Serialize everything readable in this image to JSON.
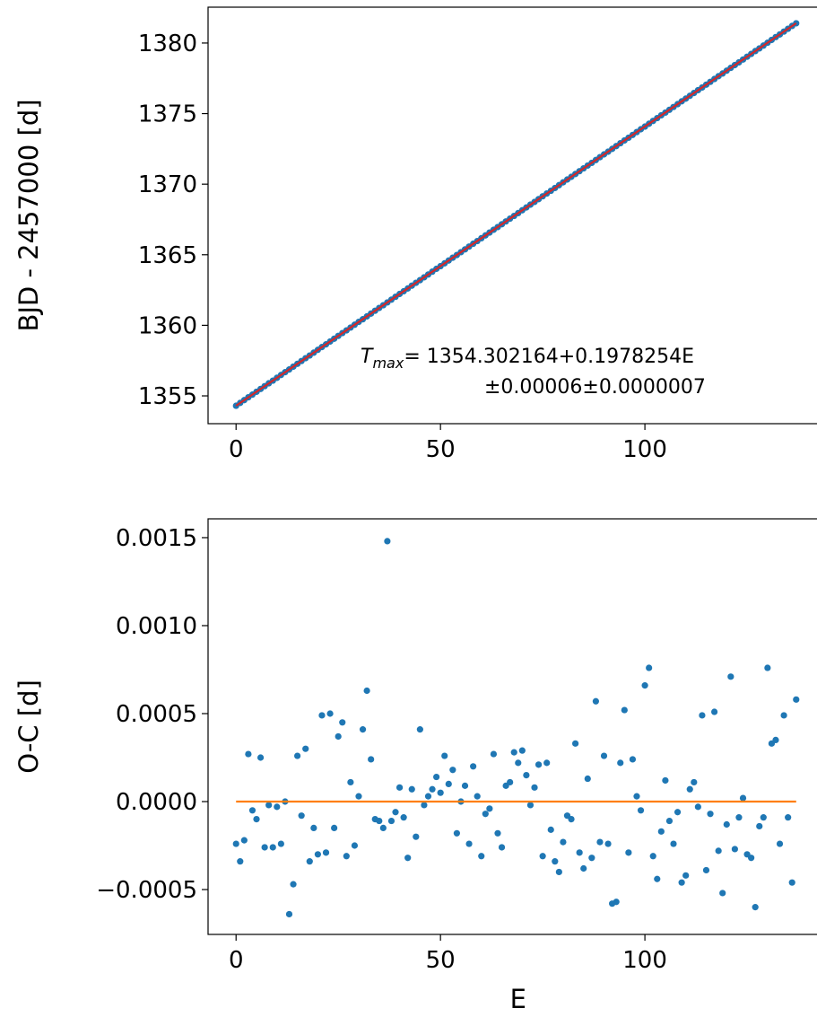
{
  "chart_data": [
    {
      "type": "scatter",
      "ylabel": "BJD - 2457000 [d]",
      "annotation": {
        "symbol": "T",
        "subscript": "max",
        "text": "= 1354.302164+0.1978254E",
        "error_text": "±0.00006±0.0000007"
      },
      "x": [
        0,
        1,
        2,
        3,
        4,
        5,
        6,
        7,
        8,
        9,
        10,
        11,
        12,
        13,
        14,
        15,
        16,
        17,
        18,
        19,
        20,
        21,
        22,
        23,
        24,
        25,
        26,
        27,
        28,
        29,
        30,
        31,
        32,
        33,
        34,
        35,
        36,
        37,
        38,
        39,
        40,
        41,
        42,
        43,
        44,
        45,
        46,
        47,
        48,
        49,
        50,
        51,
        52,
        53,
        54,
        55,
        56,
        57,
        58,
        59,
        60,
        61,
        62,
        63,
        64,
        65,
        66,
        67,
        68,
        69,
        70,
        71,
        72,
        73,
        74,
        75,
        76,
        77,
        78,
        79,
        80,
        81,
        82,
        83,
        84,
        85,
        86,
        87,
        88,
        89,
        90,
        91,
        92,
        93,
        94,
        95,
        96,
        97,
        98,
        99,
        100,
        101,
        102,
        103,
        104,
        105,
        106,
        107,
        108,
        109,
        110,
        111,
        112,
        113,
        114,
        115,
        116,
        117,
        118,
        119,
        120,
        121,
        122,
        123,
        124,
        125,
        126,
        127,
        128,
        129,
        130,
        131,
        132,
        133,
        134,
        135,
        136,
        137
      ],
      "values": [
        1354.3,
        1354.5,
        1354.7,
        1354.9,
        1355.09,
        1355.29,
        1355.49,
        1355.69,
        1355.89,
        1356.08,
        1356.28,
        1356.48,
        1356.68,
        1356.87,
        1357.07,
        1357.27,
        1357.47,
        1357.67,
        1357.86,
        1358.06,
        1358.26,
        1358.46,
        1358.65,
        1358.85,
        1359.05,
        1359.25,
        1359.45,
        1359.64,
        1359.84,
        1360.04,
        1360.24,
        1360.43,
        1360.63,
        1360.83,
        1361.03,
        1361.23,
        1361.42,
        1361.62,
        1361.82,
        1362.02,
        1362.22,
        1362.41,
        1362.61,
        1362.81,
        1363.01,
        1363.2,
        1363.4,
        1363.6,
        1363.8,
        1364.0,
        1364.19,
        1364.39,
        1364.59,
        1364.79,
        1364.98,
        1365.18,
        1365.38,
        1365.58,
        1365.78,
        1365.97,
        1366.17,
        1366.37,
        1366.57,
        1366.77,
        1366.96,
        1367.16,
        1367.36,
        1367.56,
        1367.75,
        1367.95,
        1368.15,
        1368.35,
        1368.55,
        1368.74,
        1368.94,
        1369.14,
        1369.34,
        1369.53,
        1369.73,
        1369.93,
        1370.13,
        1370.33,
        1370.52,
        1370.72,
        1370.92,
        1371.12,
        1371.32,
        1371.51,
        1371.71,
        1371.91,
        1372.11,
        1372.3,
        1372.5,
        1372.7,
        1372.9,
        1373.1,
        1373.29,
        1373.49,
        1373.69,
        1373.89,
        1374.08,
        1374.28,
        1374.48,
        1374.68,
        1374.88,
        1375.07,
        1375.27,
        1375.47,
        1375.67,
        1375.87,
        1376.06,
        1376.26,
        1376.46,
        1376.66,
        1376.85,
        1377.05,
        1377.25,
        1377.45,
        1377.65,
        1377.84,
        1378.04,
        1378.24,
        1378.44,
        1378.63,
        1378.83,
        1379.03,
        1379.23,
        1379.43,
        1379.62,
        1379.82,
        1380.02,
        1380.22,
        1380.42,
        1380.61,
        1380.81,
        1381.01,
        1381.21,
        1381.4
      ],
      "color": "#1f77b4",
      "fit_line": {
        "x": [
          0,
          137
        ],
        "values": [
          1354.302164,
          1381.404244
        ],
        "color": "#d62728"
      },
      "xlim": [
        -6.85,
        143.85
      ],
      "xticks": [
        0,
        50,
        100
      ],
      "ylim": [
        1353.03,
        1382.54
      ],
      "yticks": [
        1355,
        1360,
        1365,
        1370,
        1375,
        1380
      ]
    },
    {
      "type": "scatter",
      "xlabel": "E",
      "ylabel": "O-C [d]",
      "x": [
        0,
        1,
        2,
        3,
        4,
        5,
        6,
        7,
        8,
        9,
        10,
        11,
        12,
        13,
        14,
        15,
        16,
        17,
        18,
        19,
        20,
        21,
        22,
        23,
        24,
        25,
        26,
        27,
        28,
        29,
        30,
        31,
        32,
        33,
        34,
        35,
        36,
        37,
        38,
        39,
        40,
        41,
        42,
        43,
        44,
        45,
        46,
        47,
        48,
        49,
        50,
        51,
        52,
        53,
        54,
        55,
        56,
        57,
        58,
        59,
        60,
        61,
        62,
        63,
        64,
        65,
        66,
        67,
        68,
        69,
        70,
        71,
        72,
        73,
        74,
        75,
        76,
        77,
        78,
        79,
        80,
        81,
        82,
        83,
        84,
        85,
        86,
        87,
        88,
        89,
        90,
        91,
        92,
        93,
        94,
        95,
        96,
        97,
        98,
        99,
        100,
        101,
        102,
        103,
        104,
        105,
        106,
        107,
        108,
        109,
        110,
        111,
        112,
        113,
        114,
        115,
        116,
        117,
        118,
        119,
        120,
        121,
        122,
        123,
        124,
        125,
        126,
        127,
        128,
        129,
        130,
        131,
        132,
        133,
        134,
        135,
        136,
        137
      ],
      "values": [
        -0.00024,
        -0.00034,
        -0.00022,
        0.00027,
        -5e-05,
        -0.0001,
        0.00025,
        -0.00026,
        -2e-05,
        -0.00026,
        -3e-05,
        -0.00024,
        0,
        -0.00064,
        -0.00047,
        0.00026,
        -8e-05,
        0.0003,
        -0.00034,
        -0.00015,
        -0.0003,
        0.00049,
        -0.00029,
        0.0005,
        -0.00015,
        0.00037,
        0.00045,
        -0.00031,
        0.00011,
        -0.00025,
        3e-05,
        0.00041,
        0.00063,
        0.00024,
        -0.0001,
        -0.00011,
        -0.00015,
        0.00148,
        -0.00011,
        -6e-05,
        8e-05,
        -9e-05,
        -0.00032,
        7e-05,
        -0.0002,
        0.00041,
        -2e-05,
        3e-05,
        7e-05,
        0.00014,
        5e-05,
        0.00026,
        0.0001,
        0.00018,
        -0.00018,
        0,
        9e-05,
        -0.00024,
        0.0002,
        3e-05,
        -0.00031,
        -7e-05,
        -4e-05,
        0.00027,
        -0.00018,
        -0.00026,
        9e-05,
        0.00011,
        0.00028,
        0.00022,
        0.00029,
        0.00015,
        -2e-05,
        8e-05,
        0.00021,
        -0.00031,
        0.00022,
        -0.00016,
        -0.00034,
        -0.0004,
        -0.00023,
        -8e-05,
        -0.0001,
        0.00033,
        -0.00029,
        -0.00038,
        0.00013,
        -0.00032,
        0.00057,
        -0.00023,
        0.00026,
        -0.00024,
        -0.00058,
        -0.00057,
        0.00022,
        0.00052,
        -0.00029,
        0.00024,
        3e-05,
        -5e-05,
        0.00066,
        0.00076,
        -0.00031,
        -0.00044,
        -0.00017,
        0.00012,
        -0.00011,
        -0.00024,
        -6e-05,
        -0.00046,
        -0.00042,
        7e-05,
        0.00011,
        -3e-05,
        0.00049,
        -0.00039,
        -7e-05,
        0.00051,
        -0.00028,
        -0.00052,
        -0.00013,
        0.00071,
        -0.00027,
        -9e-05,
        2e-05,
        -0.0003,
        -0.00032,
        -0.0006,
        -0.00014,
        -9e-05,
        0.00076,
        0.00033,
        0.00035,
        -0.00024,
        0.00049,
        -9e-05,
        -0.00046,
        0.00058
      ],
      "color": "#1f77b4",
      "fit_line": {
        "x": [
          0,
          137
        ],
        "values": [
          0,
          0
        ],
        "color": "#ff7f0e"
      },
      "xlim": [
        -6.85,
        143.85
      ],
      "xticks": [
        0,
        50,
        100
      ],
      "ylim": [
        -0.000755,
        0.001607
      ],
      "yticks": [
        {
          "value": -0.0005,
          "label": "−0.0005"
        },
        {
          "value": 0,
          "label": "0.0000"
        },
        0.0005,
        {
          "value": 0.001,
          "label": "0.0010"
        },
        0.0015
      ]
    }
  ]
}
